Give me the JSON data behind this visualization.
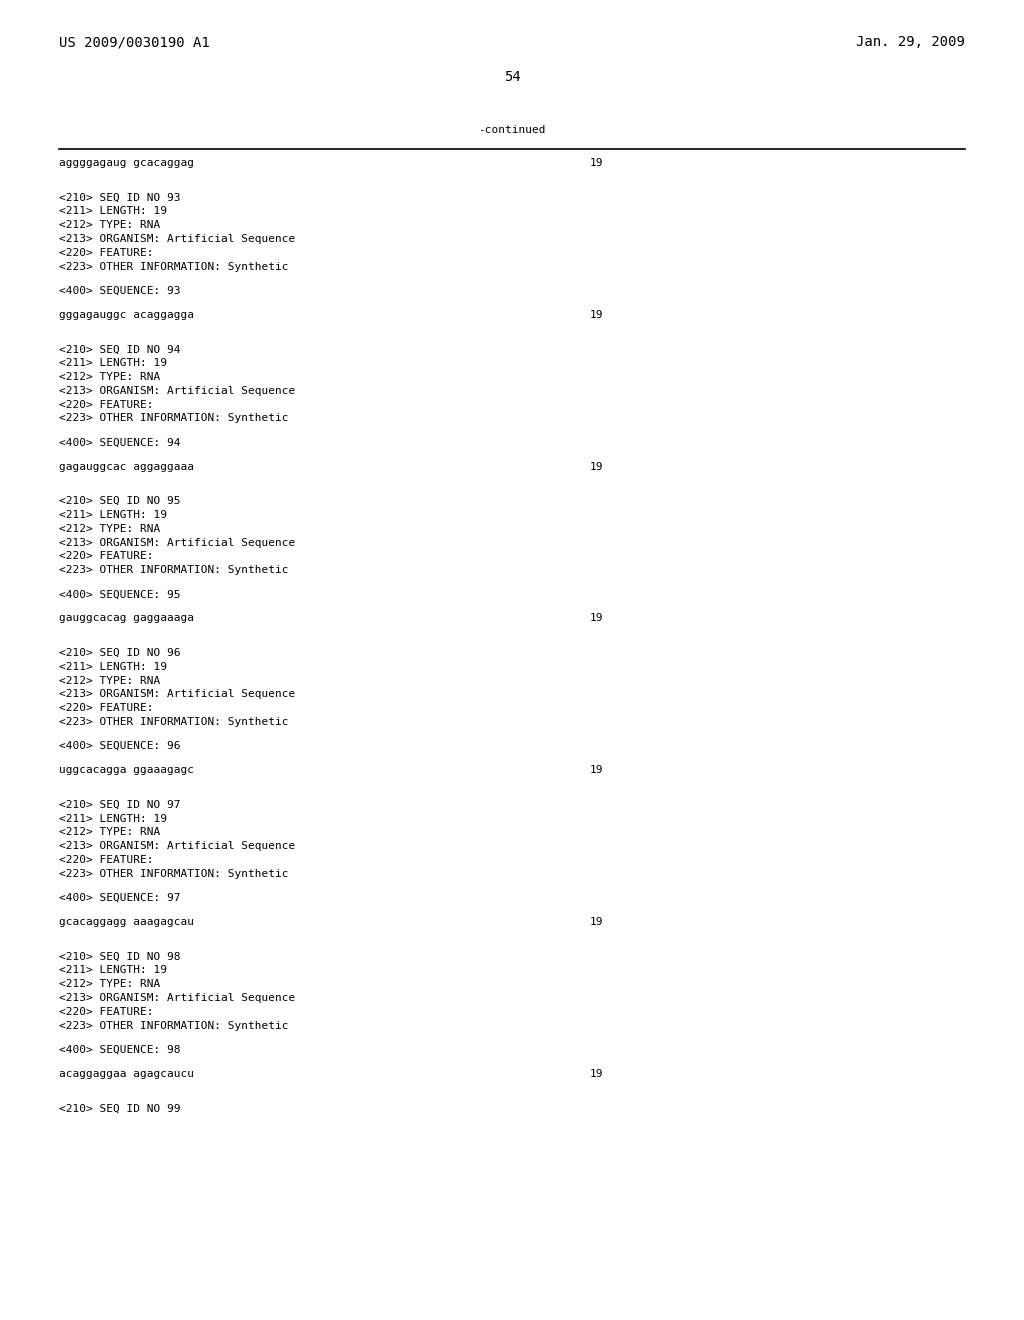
{
  "header_left": "US 2009/0030190 A1",
  "header_right": "Jan. 29, 2009",
  "page_number": "54",
  "continued_label": "-continued",
  "bg_color": "#ffffff",
  "text_color": "#000000",
  "content": [
    {
      "type": "sequence",
      "text": "aggggagaug gcacaggag",
      "number": "19"
    },
    {
      "type": "blank"
    },
    {
      "type": "blank"
    },
    {
      "type": "field",
      "text": "<210> SEQ ID NO 93"
    },
    {
      "type": "field",
      "text": "<211> LENGTH: 19"
    },
    {
      "type": "field",
      "text": "<212> TYPE: RNA"
    },
    {
      "type": "field",
      "text": "<213> ORGANISM: Artificial Sequence"
    },
    {
      "type": "field",
      "text": "<220> FEATURE:"
    },
    {
      "type": "field",
      "text": "<223> OTHER INFORMATION: Synthetic"
    },
    {
      "type": "blank"
    },
    {
      "type": "field",
      "text": "<400> SEQUENCE: 93"
    },
    {
      "type": "blank"
    },
    {
      "type": "sequence",
      "text": "gggagauggc acaggagga",
      "number": "19"
    },
    {
      "type": "blank"
    },
    {
      "type": "blank"
    },
    {
      "type": "field",
      "text": "<210> SEQ ID NO 94"
    },
    {
      "type": "field",
      "text": "<211> LENGTH: 19"
    },
    {
      "type": "field",
      "text": "<212> TYPE: RNA"
    },
    {
      "type": "field",
      "text": "<213> ORGANISM: Artificial Sequence"
    },
    {
      "type": "field",
      "text": "<220> FEATURE:"
    },
    {
      "type": "field",
      "text": "<223> OTHER INFORMATION: Synthetic"
    },
    {
      "type": "blank"
    },
    {
      "type": "field",
      "text": "<400> SEQUENCE: 94"
    },
    {
      "type": "blank"
    },
    {
      "type": "sequence",
      "text": "gagauggcac aggaggaaa",
      "number": "19"
    },
    {
      "type": "blank"
    },
    {
      "type": "blank"
    },
    {
      "type": "field",
      "text": "<210> SEQ ID NO 95"
    },
    {
      "type": "field",
      "text": "<211> LENGTH: 19"
    },
    {
      "type": "field",
      "text": "<212> TYPE: RNA"
    },
    {
      "type": "field",
      "text": "<213> ORGANISM: Artificial Sequence"
    },
    {
      "type": "field",
      "text": "<220> FEATURE:"
    },
    {
      "type": "field",
      "text": "<223> OTHER INFORMATION: Synthetic"
    },
    {
      "type": "blank"
    },
    {
      "type": "field",
      "text": "<400> SEQUENCE: 95"
    },
    {
      "type": "blank"
    },
    {
      "type": "sequence",
      "text": "gauggcacag gaggaaaga",
      "number": "19"
    },
    {
      "type": "blank"
    },
    {
      "type": "blank"
    },
    {
      "type": "field",
      "text": "<210> SEQ ID NO 96"
    },
    {
      "type": "field",
      "text": "<211> LENGTH: 19"
    },
    {
      "type": "field",
      "text": "<212> TYPE: RNA"
    },
    {
      "type": "field",
      "text": "<213> ORGANISM: Artificial Sequence"
    },
    {
      "type": "field",
      "text": "<220> FEATURE:"
    },
    {
      "type": "field",
      "text": "<223> OTHER INFORMATION: Synthetic"
    },
    {
      "type": "blank"
    },
    {
      "type": "field",
      "text": "<400> SEQUENCE: 96"
    },
    {
      "type": "blank"
    },
    {
      "type": "sequence",
      "text": "uggcacagga ggaaagagc",
      "number": "19"
    },
    {
      "type": "blank"
    },
    {
      "type": "blank"
    },
    {
      "type": "field",
      "text": "<210> SEQ ID NO 97"
    },
    {
      "type": "field",
      "text": "<211> LENGTH: 19"
    },
    {
      "type": "field",
      "text": "<212> TYPE: RNA"
    },
    {
      "type": "field",
      "text": "<213> ORGANISM: Artificial Sequence"
    },
    {
      "type": "field",
      "text": "<220> FEATURE:"
    },
    {
      "type": "field",
      "text": "<223> OTHER INFORMATION: Synthetic"
    },
    {
      "type": "blank"
    },
    {
      "type": "field",
      "text": "<400> SEQUENCE: 97"
    },
    {
      "type": "blank"
    },
    {
      "type": "sequence",
      "text": "gcacaggagg aaagagcau",
      "number": "19"
    },
    {
      "type": "blank"
    },
    {
      "type": "blank"
    },
    {
      "type": "field",
      "text": "<210> SEQ ID NO 98"
    },
    {
      "type": "field",
      "text": "<211> LENGTH: 19"
    },
    {
      "type": "field",
      "text": "<212> TYPE: RNA"
    },
    {
      "type": "field",
      "text": "<213> ORGANISM: Artificial Sequence"
    },
    {
      "type": "field",
      "text": "<220> FEATURE:"
    },
    {
      "type": "field",
      "text": "<223> OTHER INFORMATION: Synthetic"
    },
    {
      "type": "blank"
    },
    {
      "type": "field",
      "text": "<400> SEQUENCE: 98"
    },
    {
      "type": "blank"
    },
    {
      "type": "sequence",
      "text": "acaggaggaa agagcaucu",
      "number": "19"
    },
    {
      "type": "blank"
    },
    {
      "type": "blank"
    },
    {
      "type": "field",
      "text": "<210> SEQ ID NO 99"
    }
  ]
}
